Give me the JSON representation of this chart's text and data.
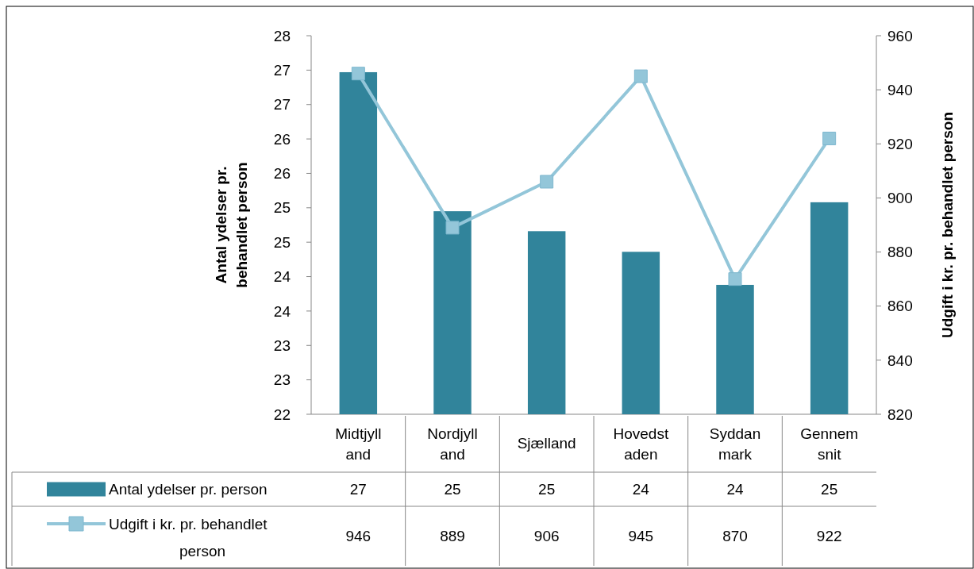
{
  "chart_data": {
    "type": "bar",
    "categories": [
      "Midtjyll\nand",
      "Nordjyll\nand",
      "Sjælland",
      "Hovedst\naden",
      "Syddan\nmark",
      "Gennem\nsnit"
    ],
    "series": [
      {
        "name": "Antal ydelser pr. person",
        "color": "#31849b",
        "values": [
          26.97,
          24.95,
          24.66,
          24.36,
          23.88,
          25.08
        ],
        "value_labels": [
          "27",
          "25",
          "25",
          "24",
          "24",
          "25"
        ]
      },
      {
        "name": "Udgift i kr. pr. behandlet person",
        "type": "line",
        "axis": "y2",
        "color": "#93c6d9",
        "marker": "square",
        "values": [
          946,
          889,
          906,
          945,
          870,
          922
        ],
        "value_labels": [
          "946",
          "889",
          "906",
          "945",
          "870",
          "922"
        ]
      }
    ],
    "ylabel": "Antal ydelser pr.\nbehandlet person",
    "y2label": "Udgift i kr. pr. behandlet person",
    "ylim": [
      22,
      27.5
    ],
    "yticks": [
      22,
      {
        "value": 22.5,
        "label": "23"
      },
      23,
      {
        "value": 23.5,
        "label": "24"
      },
      24,
      {
        "value": 24.5,
        "label": "25"
      },
      25,
      {
        "value": 25.5,
        "label": "26"
      },
      26,
      {
        "value": 26.5,
        "label": "27"
      },
      27,
      {
        "value": 27.5,
        "label": "28"
      }
    ],
    "y2lim": [
      820,
      960
    ],
    "y2ticks": [
      820,
      840,
      860,
      880,
      900,
      920,
      940,
      960
    ],
    "grid": false,
    "legend": "bottom"
  }
}
